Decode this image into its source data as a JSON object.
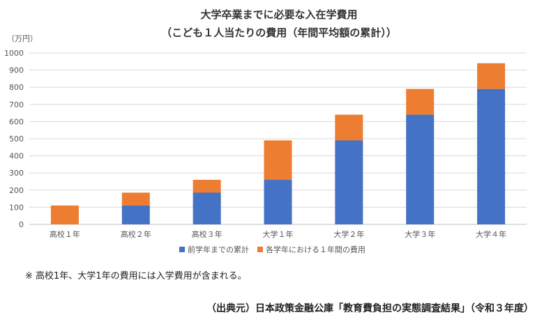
{
  "chart_data": {
    "type": "bar",
    "stacked": true,
    "title": "大学卒業までに必要な入在学費用",
    "subtitle": "（こども１人当たりの費用（年間平均額の累計））",
    "ylabel": "（万円）",
    "xlabel": "",
    "ylim": [
      0,
      1000
    ],
    "yticks": [
      0,
      100,
      200,
      300,
      400,
      500,
      600,
      700,
      800,
      900,
      1000
    ],
    "grid": true,
    "legend_position": "bottom",
    "categories": [
      "高校１年",
      "高校２年",
      "高校３年",
      "大学１年",
      "大学２年",
      "大学３年",
      "大学４年"
    ],
    "series": [
      {
        "name": "前学年までの累計",
        "color": "#4472C4",
        "values": [
          0,
          110,
          185,
          260,
          490,
          640,
          790
        ]
      },
      {
        "name": "各学年における１年間の費用",
        "color": "#ED7D31",
        "values": [
          110,
          75,
          75,
          230,
          150,
          150,
          150
        ]
      }
    ]
  },
  "note": "※ 高校1年、大学1年の費用には入学費用が含まれる。",
  "source": "（出典元）日本政策金融公庫「教育費負担の実態調査結果」（令和３年度）"
}
